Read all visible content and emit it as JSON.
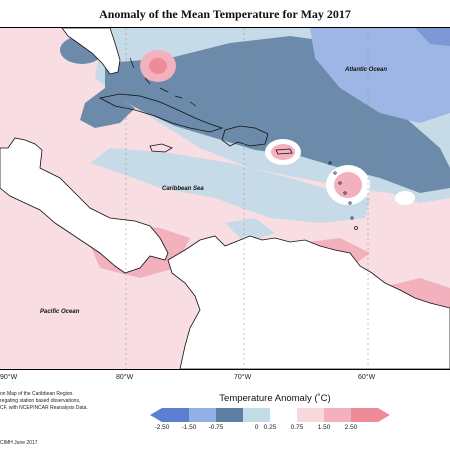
{
  "title": "Anomaly of the Mean Temperature for May 2017",
  "labels": {
    "atlantic": "Atlantic Ocean",
    "caribbean": "Caribbean Sea",
    "pacific": "Pacific Ocean"
  },
  "longitudes": [
    "90°W",
    "80°W",
    "70°W",
    "60°W"
  ],
  "credits": [
    "on Map of the Caribbean Region.",
    "regating station based observations,",
    "CF, with NCEP/NCAR Reanalysis Data.",
    "CIMH June 2017"
  ],
  "legend": {
    "title": "Temperature Anomaly (˚C)",
    "ticks": [
      "-2.50",
      "-1.50",
      "-0.75",
      "0",
      "0.25",
      "0.75",
      "1.50",
      "2.50"
    ],
    "colors": [
      "#5b7fd1",
      "#93afe3",
      "#5d7fa3",
      "#c2dde8",
      "#ffffff",
      "#f8d8dd",
      "#f2b1bd",
      "#ef8a98"
    ]
  }
}
